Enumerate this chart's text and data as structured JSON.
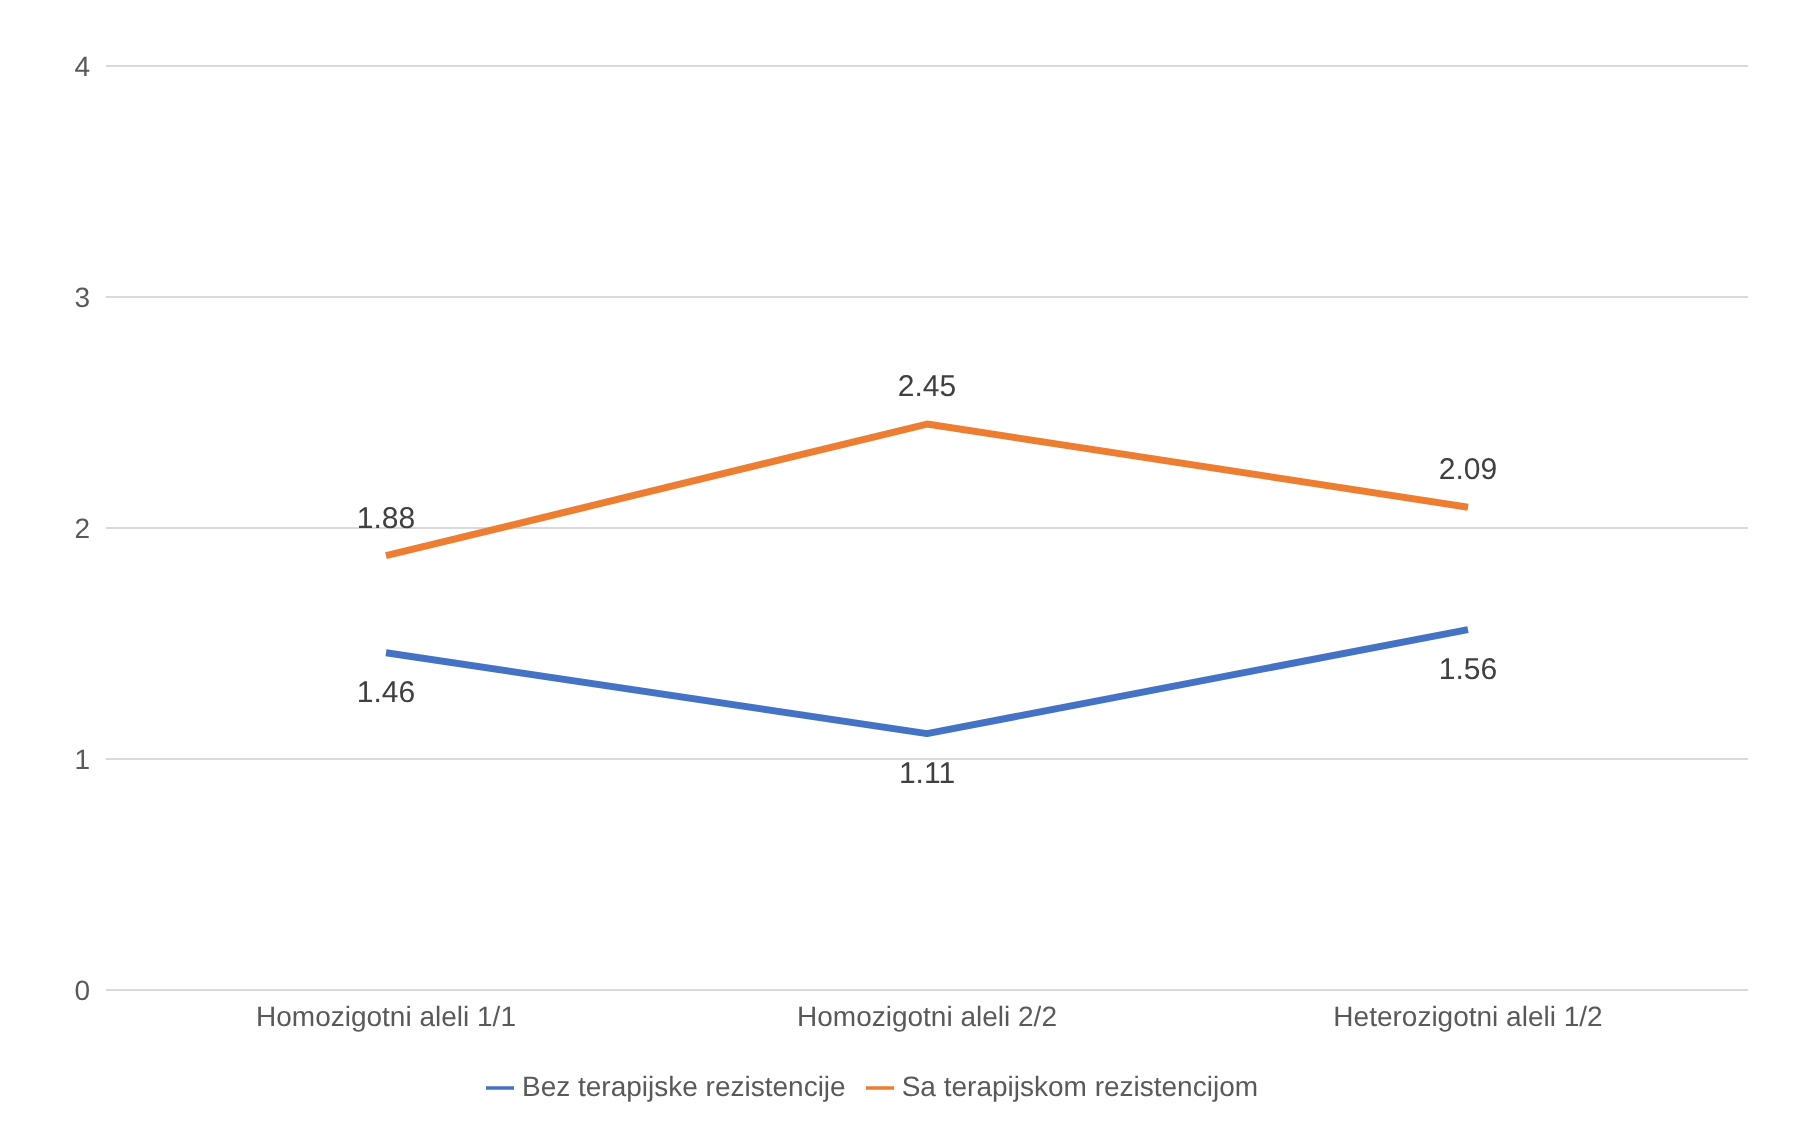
{
  "chart_data": {
    "type": "line",
    "categories": [
      "Homozigotni aleli 1/1",
      "Homozigotni aleli 2/2",
      "Heterozigotni aleli 1/2"
    ],
    "series": [
      {
        "name": "Bez terapijske rezistencije",
        "color": "#4472c4",
        "values": [
          1.46,
          1.11,
          1.56
        ]
      },
      {
        "name": "Sa terapijskom rezistencijom",
        "color": "#ed7d31",
        "values": [
          1.88,
          2.45,
          2.09
        ]
      }
    ],
    "ylim": [
      0,
      4
    ],
    "yticks": [
      0,
      1,
      2,
      3,
      4
    ],
    "grid": "y",
    "legend": "bottom",
    "data_labels": true,
    "marker": "none",
    "line_style": "solid"
  }
}
